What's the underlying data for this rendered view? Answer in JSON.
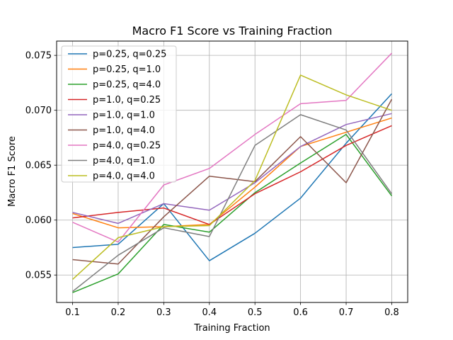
{
  "chart_data": {
    "type": "line",
    "title": "Macro F1 Score vs Training Fraction",
    "xlabel": "Training Fraction",
    "ylabel": "Macro F1 Score",
    "x": [
      0.1,
      0.2,
      0.3,
      0.4,
      0.5,
      0.6,
      0.7,
      0.8
    ],
    "x_ticks": [
      "0.1",
      "0.2",
      "0.3",
      "0.4",
      "0.5",
      "0.6",
      "0.7",
      "0.8"
    ],
    "y_ticks": [
      "0.055",
      "0.060",
      "0.065",
      "0.070",
      "0.075"
    ],
    "y_tick_values": [
      0.055,
      0.06,
      0.065,
      0.07,
      0.075
    ],
    "xlim": [
      0.065,
      0.835
    ],
    "ylim": [
      0.0525,
      0.0763
    ],
    "grid": true,
    "legend_position": "top-left",
    "series": [
      {
        "name": "p=0.25, q=0.25",
        "color": "#1f77b4",
        "values": [
          0.0575,
          0.0578,
          0.0615,
          0.0563,
          0.0588,
          0.062,
          0.067,
          0.0715
        ]
      },
      {
        "name": "p=0.25, q=1.0",
        "color": "#ff7f0e",
        "values": [
          0.0606,
          0.0593,
          0.0594,
          0.0596,
          0.063,
          0.0667,
          0.068,
          0.0693
        ]
      },
      {
        "name": "p=0.25, q=4.0",
        "color": "#2ca02c",
        "values": [
          0.0534,
          0.0551,
          0.0596,
          0.0589,
          0.0625,
          0.0652,
          0.0678,
          0.0622
        ]
      },
      {
        "name": "p=1.0, q=0.25",
        "color": "#d62728",
        "values": [
          0.0602,
          0.0607,
          0.0611,
          0.0596,
          0.0624,
          0.0644,
          0.0668,
          0.0686
        ]
      },
      {
        "name": "p=1.0, q=1.0",
        "color": "#9467bd",
        "values": [
          0.0607,
          0.0597,
          0.0615,
          0.0609,
          0.0634,
          0.0667,
          0.0687,
          0.0697
        ]
      },
      {
        "name": "p=1.0, q=4.0",
        "color": "#8c564b",
        "values": [
          0.0564,
          0.056,
          0.0603,
          0.064,
          0.0635,
          0.0676,
          0.0634,
          0.071
        ]
      },
      {
        "name": "p=4.0, q=0.25",
        "color": "#e377c2",
        "values": [
          0.0598,
          0.058,
          0.0632,
          0.0647,
          0.0678,
          0.0706,
          0.0709,
          0.0752
        ]
      },
      {
        "name": "p=4.0, q=1.0",
        "color": "#7f7f7f",
        "values": [
          0.0535,
          0.0568,
          0.0593,
          0.0585,
          0.0668,
          0.0696,
          0.0682,
          0.0624
        ]
      },
      {
        "name": "p=4.0, q=4.0",
        "color": "#bcbd22",
        "values": [
          0.0546,
          0.0584,
          0.0594,
          0.0595,
          0.0636,
          0.0732,
          0.0714,
          0.07
        ]
      }
    ]
  }
}
